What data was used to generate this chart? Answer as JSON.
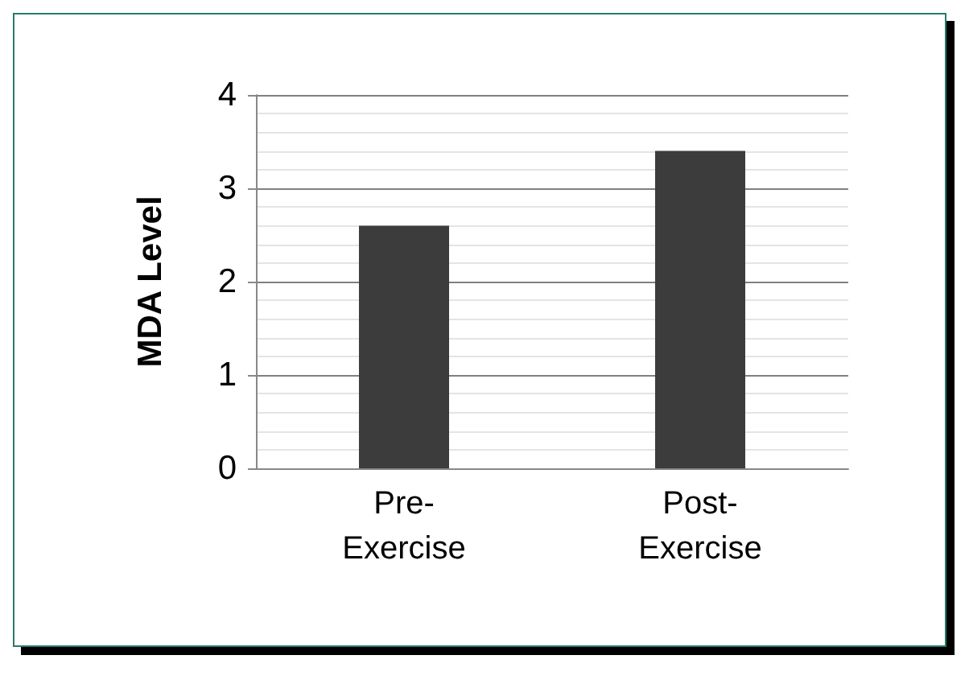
{
  "chart_data": {
    "type": "bar",
    "ylabel": "MDA Level",
    "categories": [
      "Pre-Exercise",
      "Post-Exercise"
    ],
    "values": [
      2.6,
      3.4
    ],
    "color": "#3c3c3c",
    "ylim": [
      0,
      4
    ],
    "yticks": [
      0,
      1,
      2,
      3,
      4
    ],
    "grid": "y"
  }
}
